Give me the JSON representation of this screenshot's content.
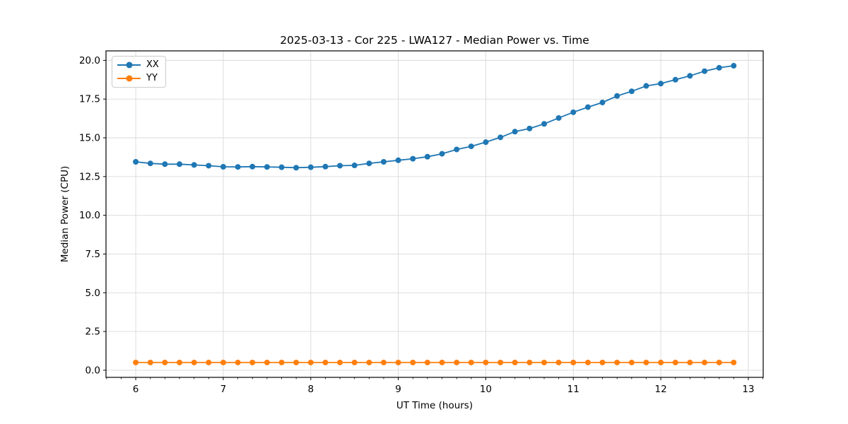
{
  "figure": {
    "background": "#ffffff",
    "grid_color": "#d9d9d9",
    "spine_color": "#000000"
  },
  "chart_data": {
    "type": "line",
    "title": "2025-03-13 - Cor 225 - LWA127 - Median Power vs. Time",
    "xlabel": "UT Time (hours)",
    "ylabel": "Median Power (CPU)",
    "xlim": [
      5.66,
      13.17
    ],
    "ylim": [
      -0.46,
      20.61
    ],
    "x_ticks": [
      6,
      7,
      8,
      9,
      10,
      11,
      12,
      13
    ],
    "x_minor_step": 0.166667,
    "y_ticks": [
      0.0,
      2.5,
      5.0,
      7.5,
      10.0,
      12.5,
      15.0,
      17.5,
      20.0
    ],
    "grid": true,
    "legend_position": "upper left",
    "x": [
      6.0,
      6.167,
      6.333,
      6.5,
      6.667,
      6.833,
      7.0,
      7.167,
      7.333,
      7.5,
      7.667,
      7.833,
      8.0,
      8.167,
      8.333,
      8.5,
      8.667,
      8.833,
      9.0,
      9.167,
      9.333,
      9.5,
      9.667,
      9.833,
      10.0,
      10.167,
      10.333,
      10.5,
      10.667,
      10.833,
      11.0,
      11.167,
      11.333,
      11.5,
      11.667,
      11.833,
      12.0,
      12.167,
      12.333,
      12.5,
      12.667,
      12.833
    ],
    "series": [
      {
        "name": "XX",
        "color": "#1f77b4",
        "values": [
          13.45,
          13.35,
          13.3,
          13.3,
          13.25,
          13.2,
          13.13,
          13.12,
          13.14,
          13.12,
          13.1,
          13.07,
          13.1,
          13.14,
          13.2,
          13.22,
          13.35,
          13.45,
          13.55,
          13.65,
          13.78,
          13.97,
          14.25,
          14.45,
          14.72,
          15.03,
          15.4,
          15.6,
          15.9,
          16.28,
          16.65,
          16.98,
          17.28,
          17.7,
          18.0,
          18.35,
          18.5,
          18.75,
          19.0,
          19.3,
          19.52,
          19.65
        ]
      },
      {
        "name": "YY",
        "color": "#ff7f0e",
        "values": [
          0.5,
          0.5,
          0.5,
          0.5,
          0.5,
          0.5,
          0.5,
          0.5,
          0.5,
          0.5,
          0.5,
          0.5,
          0.5,
          0.5,
          0.5,
          0.5,
          0.5,
          0.5,
          0.5,
          0.5,
          0.5,
          0.5,
          0.5,
          0.5,
          0.5,
          0.5,
          0.5,
          0.5,
          0.5,
          0.5,
          0.5,
          0.5,
          0.5,
          0.5,
          0.5,
          0.5,
          0.5,
          0.5,
          0.5,
          0.5,
          0.5,
          0.5
        ]
      }
    ]
  }
}
